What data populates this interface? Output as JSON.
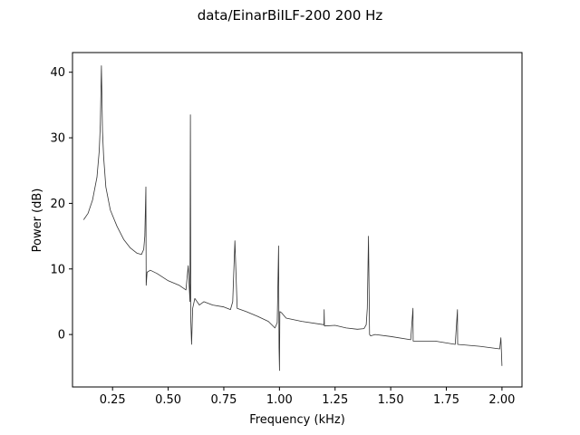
{
  "chart_data": {
    "type": "line",
    "title": "data/EinarBiILF-200   200 Hz",
    "xlabel": "Frequency (kHz)",
    "ylabel": "Power (dB)",
    "xlim": [
      0.07,
      2.09
    ],
    "ylim": [
      -8,
      43
    ],
    "xticks": [
      0.25,
      0.5,
      0.75,
      1.0,
      1.25,
      1.5,
      1.75,
      2.0
    ],
    "xtick_labels": [
      "0.25",
      "0.50",
      "0.75",
      "1.00",
      "1.25",
      "1.50",
      "1.75",
      "2.00"
    ],
    "yticks": [
      0,
      10,
      20,
      30,
      40
    ],
    "ytick_labels": [
      "0",
      "10",
      "20",
      "30",
      "40"
    ],
    "grid": false,
    "line_color": "#333333",
    "series": [
      {
        "x": [
          0.12,
          0.14,
          0.16,
          0.18,
          0.19,
          0.195,
          0.2,
          0.205,
          0.21,
          0.22,
          0.24,
          0.27,
          0.3,
          0.33,
          0.36,
          0.38,
          0.39,
          0.395,
          0.4,
          0.401,
          0.405,
          0.42,
          0.45,
          0.5,
          0.55,
          0.58,
          0.59,
          0.598,
          0.6,
          0.602,
          0.605,
          0.61,
          0.62,
          0.64,
          0.66,
          0.7,
          0.75,
          0.78,
          0.79,
          0.8,
          0.81,
          0.85,
          0.9,
          0.95,
          0.98,
          0.99,
          0.996,
          0.998,
          1.0,
          1.002,
          1.01,
          1.03,
          1.1,
          1.2,
          1.201,
          1.202,
          1.25,
          1.3,
          1.35,
          1.38,
          1.39,
          1.395,
          1.4,
          1.405,
          1.41,
          1.43,
          1.5,
          1.59,
          1.6,
          1.601,
          1.7,
          1.79,
          1.8,
          1.801,
          1.9,
          1.99,
          1.995,
          2.0
        ],
        "y": [
          17.5,
          18.5,
          20.5,
          24,
          28,
          32,
          41,
          31,
          27,
          22.5,
          19,
          16.5,
          14.5,
          13.2,
          12.4,
          12.2,
          13,
          15,
          22.5,
          7.5,
          9.5,
          9.8,
          9.3,
          8.2,
          7.5,
          6.8,
          10.5,
          5,
          33.5,
          2,
          -1.5,
          4,
          5.5,
          4.5,
          5,
          4.5,
          4.2,
          3.8,
          5,
          14.3,
          4,
          3.5,
          2.8,
          2,
          1,
          1.8,
          13.5,
          -2,
          -5.5,
          3.5,
          3.3,
          2.5,
          2,
          1.5,
          3.8,
          1.3,
          1.4,
          1,
          0.8,
          0.9,
          1.5,
          4,
          15,
          0,
          -0.2,
          0,
          -0.3,
          -0.8,
          4,
          -1,
          -1,
          -1.5,
          3.8,
          -1.5,
          -1.8,
          -2.2,
          -0.5,
          -4.8
        ]
      }
    ]
  }
}
